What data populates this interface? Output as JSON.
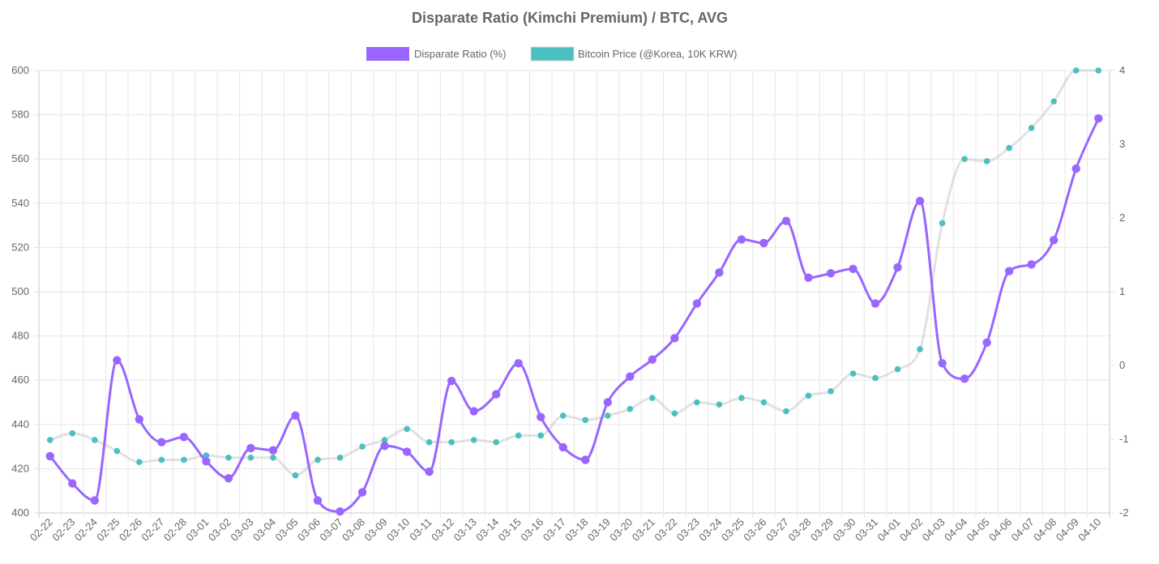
{
  "chart_data": {
    "type": "line",
    "title": "Disparate Ratio (Kimchi Premium) / BTC, AVG",
    "categories": [
      "02-22",
      "02-23",
      "02-24",
      "02-25",
      "02-26",
      "02-27",
      "02-28",
      "03-01",
      "03-02",
      "03-03",
      "03-04",
      "03-05",
      "03-06",
      "03-07",
      "03-08",
      "03-09",
      "03-10",
      "03-11",
      "03-12",
      "03-13",
      "03-14",
      "03-15",
      "03-16",
      "03-17",
      "03-18",
      "03-19",
      "03-20",
      "03-21",
      "03-22",
      "03-23",
      "03-24",
      "03-25",
      "03-26",
      "03-27",
      "03-28",
      "03-29",
      "03-30",
      "03-31",
      "04-01",
      "04-02",
      "04-03",
      "04-04",
      "04-05",
      "04-06",
      "04-07",
      "04-08",
      "04-09",
      "04-10"
    ],
    "left_axis": {
      "min": 400,
      "max": 600,
      "ticks": [
        "400",
        "420",
        "440",
        "460",
        "480",
        "500",
        "520",
        "540",
        "560",
        "580",
        "600"
      ]
    },
    "right_axis": {
      "min": -2,
      "max": 4,
      "ticks": [
        "-2",
        "-1",
        "0",
        "1",
        "2",
        "3",
        "4"
      ]
    },
    "series": [
      {
        "name": "Disparate Ratio (%)",
        "axis": "right",
        "color": "#9966ff",
        "values": [
          -1.23,
          -1.6,
          -1.83,
          0.07,
          -0.73,
          -1.04,
          -0.97,
          -1.3,
          -1.53,
          -1.12,
          -1.15,
          -0.68,
          -1.83,
          -1.98,
          -1.72,
          -1.09,
          -1.17,
          -1.44,
          -0.21,
          -0.62,
          -0.39,
          0.03,
          -0.7,
          -1.11,
          -1.28,
          -0.5,
          -0.15,
          0.08,
          0.37,
          0.84,
          1.26,
          1.71,
          1.66,
          1.96,
          1.19,
          1.25,
          1.31,
          0.84,
          1.33,
          2.23,
          0.03,
          -0.18,
          0.31,
          1.28,
          1.37,
          1.7,
          2.67,
          3.35
        ]
      },
      {
        "name": "Bitcoin Price (@Korea, 10K KRW)",
        "axis": "left",
        "color": "#4bc0c0",
        "values": [
          433,
          436,
          433,
          428,
          423,
          424,
          424,
          426,
          425,
          425,
          425,
          417,
          424,
          425,
          430,
          433,
          438,
          432,
          432,
          433,
          432,
          435,
          435,
          444,
          442,
          444,
          447,
          452,
          445,
          450,
          449,
          452,
          450,
          446,
          453,
          455,
          463,
          461,
          465,
          474,
          531,
          560,
          559,
          565,
          574,
          586,
          600,
          600
        ]
      }
    ]
  }
}
